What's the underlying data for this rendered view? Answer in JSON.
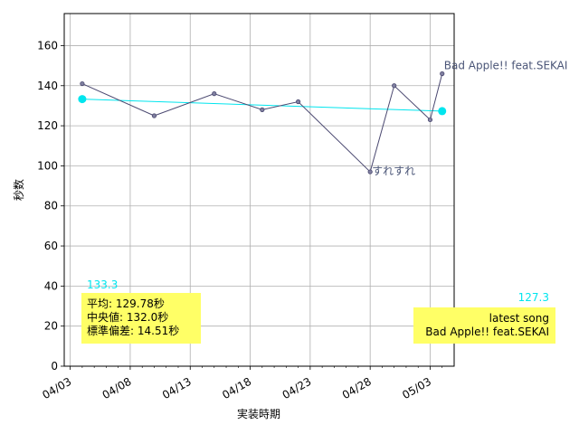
{
  "chart_data": {
    "type": "line",
    "xlabel": "実装時期",
    "ylabel": "秒数",
    "xlim": [
      "2023-04-02T12:00",
      "2023-05-05"
    ],
    "ylim": [
      0,
      176
    ],
    "y_ticks": [
      0,
      20,
      40,
      60,
      80,
      100,
      120,
      140,
      160
    ],
    "x_ticks": [
      "2023-04-03",
      "2023-04-08",
      "2023-04-13",
      "2023-04-18",
      "2023-04-23",
      "2023-04-28",
      "2023-05-03"
    ],
    "x_tick_labels": [
      "04/03",
      "04/08",
      "04/13",
      "04/18",
      "04/23",
      "04/28",
      "05/03"
    ],
    "minor_x_ticks": [
      "2023-04-04",
      "2023-04-05",
      "2023-04-06",
      "2023-04-07",
      "2023-04-09",
      "2023-04-10",
      "2023-04-11",
      "2023-04-12",
      "2023-04-14",
      "2023-04-15",
      "2023-04-16",
      "2023-04-17",
      "2023-04-19",
      "2023-04-20",
      "2023-04-21",
      "2023-04-22",
      "2023-04-24",
      "2023-04-25",
      "2023-04-26",
      "2023-04-27",
      "2023-04-29",
      "2023-04-30",
      "2023-05-01",
      "2023-05-02",
      "2023-05-04"
    ],
    "grid": true,
    "colors": {
      "series": "#4a4870",
      "trend": "#00e5ee",
      "box": "#ffff66",
      "label": "#4a5577"
    },
    "series": [
      {
        "x": [
          "2023-04-04",
          "2023-04-10",
          "2023-04-15",
          "2023-04-19",
          "2023-04-22",
          "2023-04-28",
          "2023-04-30",
          "2023-05-03",
          "2023-05-04"
        ],
        "values": [
          141,
          125,
          136,
          128,
          132,
          97,
          140,
          123,
          146
        ],
        "style": "line-markers"
      }
    ],
    "trend": {
      "x": [
        "2023-04-04",
        "2023-05-04"
      ],
      "values": [
        133.3,
        127.3
      ],
      "start_label": "133.3",
      "end_label": "127.3"
    },
    "annotations": [
      {
        "text": "すれすれ",
        "x": "2023-04-28",
        "y": 97
      },
      {
        "text": "Bad Apple!! feat.SEKAI",
        "x": "2023-05-04",
        "y": 146
      }
    ],
    "stats_box": {
      "lines": [
        "平均: 129.78秒",
        "中央値: 132.0秒",
        "標準偏差:  14.51秒"
      ]
    },
    "latest_box": {
      "lines": [
        "latest song",
        "Bad Apple!! feat.SEKAI"
      ]
    }
  }
}
